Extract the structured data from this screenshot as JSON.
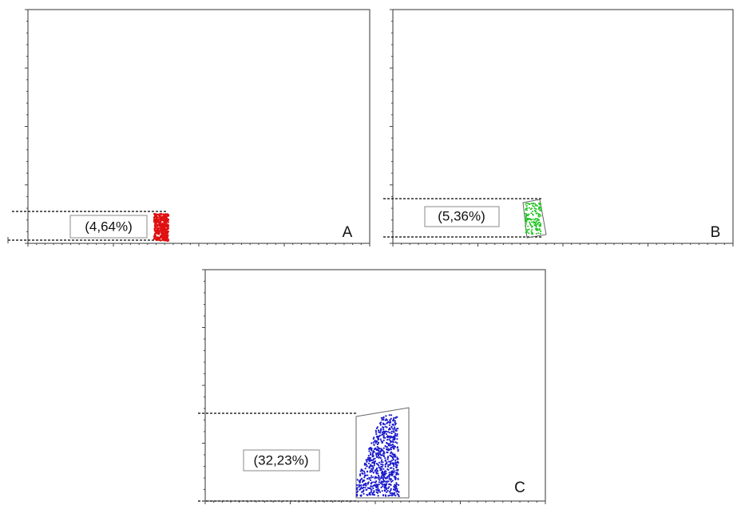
{
  "panels": [
    {
      "letter": "A",
      "gate_label": "(4,64%)"
    },
    {
      "letter": "B",
      "gate_label": "(5,36%)"
    },
    {
      "letter": "C",
      "gate_label": "(32,23%)"
    }
  ]
}
